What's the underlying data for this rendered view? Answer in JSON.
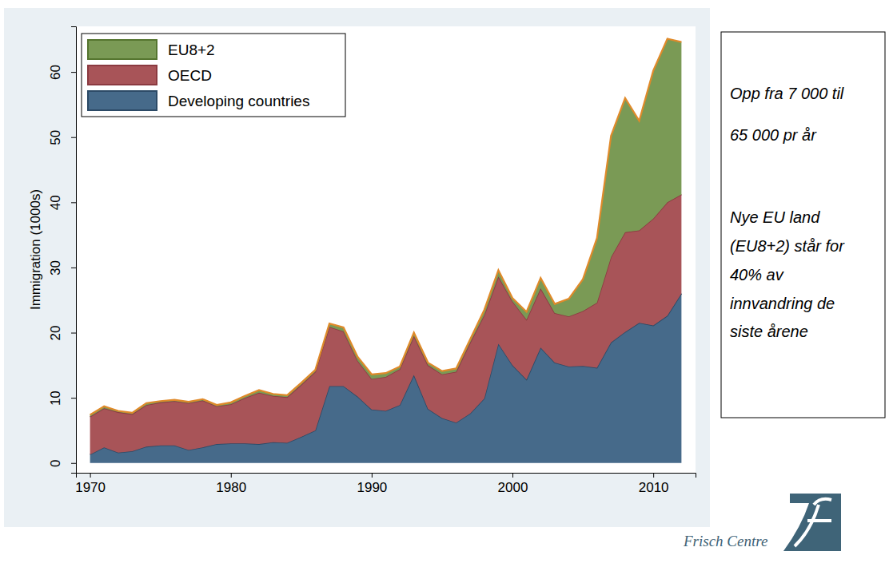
{
  "chart_data": {
    "type": "area",
    "stacked": true,
    "y_label": "Immigration (1000s)",
    "x": [
      1970,
      1971,
      1972,
      1973,
      1974,
      1975,
      1976,
      1977,
      1978,
      1979,
      1980,
      1981,
      1982,
      1983,
      1984,
      1985,
      1986,
      1987,
      1988,
      1989,
      1990,
      1991,
      1992,
      1993,
      1994,
      1995,
      1996,
      1997,
      1998,
      1999,
      2000,
      2001,
      2002,
      2003,
      2004,
      2005,
      2006,
      2007,
      2008,
      2009,
      2010,
      2011,
      2012
    ],
    "series": [
      {
        "name": "EU8+2",
        "color": "#7a9a55",
        "values": [
          0.3,
          0.3,
          0.2,
          0.2,
          0.3,
          0.2,
          0.2,
          0.2,
          0.2,
          0.2,
          0.3,
          0.3,
          0.4,
          0.3,
          0.3,
          0.3,
          0.3,
          0.5,
          0.6,
          0.6,
          0.7,
          0.6,
          0.4,
          0.5,
          0.4,
          0.5,
          0.5,
          0.5,
          0.8,
          1.0,
          0.5,
          1.2,
          1.6,
          1.4,
          2.7,
          4.9,
          9.9,
          18.6,
          20.6,
          16.8,
          22.7,
          25.1,
          23.4
        ]
      },
      {
        "name": "OECD",
        "color": "#a85458",
        "values": [
          5.8,
          6.0,
          6.2,
          5.7,
          6.4,
          6.6,
          6.8,
          7.2,
          7.2,
          5.8,
          6.0,
          7.0,
          7.9,
          7.1,
          7.0,
          8.0,
          9.0,
          9.1,
          8.4,
          5.5,
          4.7,
          5.2,
          5.5,
          6.0,
          6.7,
          6.7,
          7.8,
          10.9,
          12.8,
          10.3,
          9.8,
          9.2,
          9.1,
          7.6,
          7.7,
          8.4,
          10.0,
          13.1,
          15.3,
          14.2,
          16.4,
          17.4,
          15.2
        ]
      },
      {
        "name": "Developing countries",
        "color": "#466a8a",
        "values": [
          1.3,
          2.4,
          1.6,
          1.8,
          2.5,
          2.7,
          2.7,
          2.0,
          2.4,
          2.9,
          3.0,
          3.0,
          2.9,
          3.2,
          3.1,
          4.0,
          5.0,
          11.8,
          11.8,
          10.2,
          8.2,
          8.0,
          8.9,
          13.5,
          8.3,
          6.9,
          6.2,
          7.6,
          9.9,
          18.3,
          15.0,
          12.8,
          17.7,
          15.4,
          14.8,
          14.9,
          14.6,
          18.5,
          20.1,
          21.5,
          21.1,
          22.6,
          26.0
        ]
      }
    ],
    "xlim": [
      1969,
      2013
    ],
    "xticks": [
      1970,
      1980,
      1990,
      2000,
      2010
    ],
    "ylim": [
      -1.5,
      67
    ],
    "yticks": [
      0,
      10,
      20,
      30,
      40,
      50,
      60
    ],
    "legend": "top-left",
    "grid": false,
    "annotations": [
      "Opp fra 7 000 til",
      "65 000 pr år",
      "Nye EU land",
      "(EU8+2) står for",
      "40% av",
      "innvandring de",
      "siste årene"
    ],
    "source": "Frisch Centre"
  }
}
